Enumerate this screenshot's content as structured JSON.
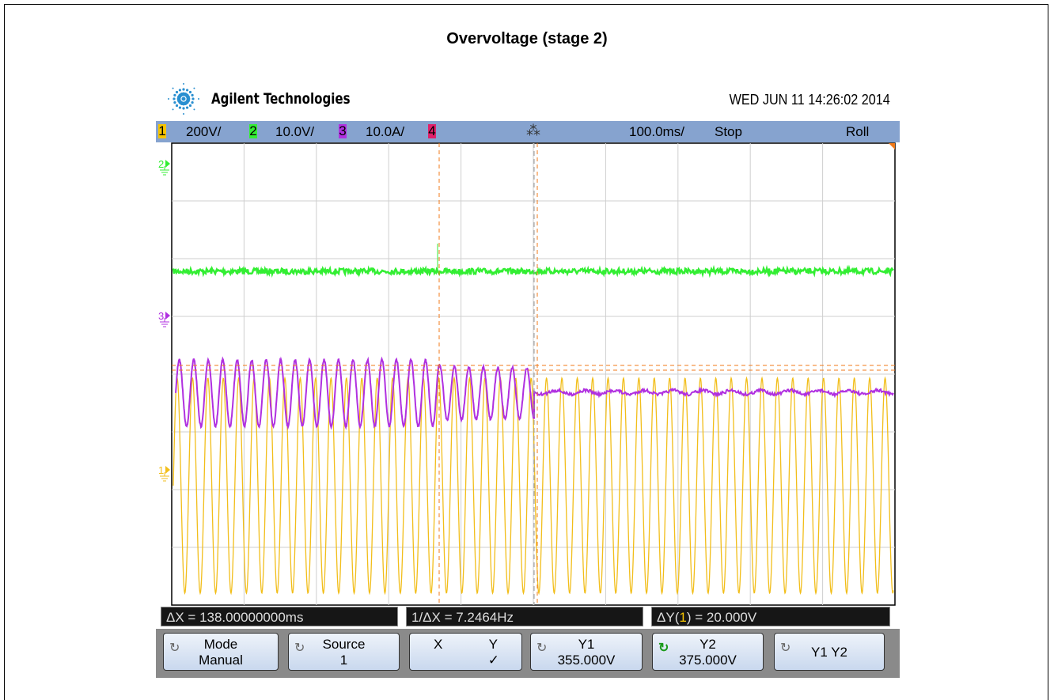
{
  "title": "Overvoltage (stage 2)",
  "scope": {
    "brand": "Agilent Technologies",
    "datetime": "WED JUN 11 14:26:02 2014",
    "status_bar": {
      "channels": [
        {
          "number": "1",
          "scale": "200V/"
        },
        {
          "number": "2",
          "scale": "10.0V/"
        },
        {
          "number": "3",
          "scale": "10.0A/"
        },
        {
          "number": "4"
        }
      ],
      "timebase": "100.0ms/",
      "run_state": "Stop",
      "mode": "Roll"
    },
    "channel_markers": [
      "2",
      "3",
      "1"
    ],
    "measurements": {
      "delta_x": "ΔX = 138.00000000ms",
      "inverse_delta_x": "1/ΔX = 7.2464Hz",
      "delta_y_prefix": "ΔY(",
      "delta_y_channel": "1",
      "delta_y_suffix": ") = 20.000V"
    },
    "softkeys": [
      {
        "label": "Mode",
        "value": "Manual"
      },
      {
        "label": "Source",
        "value": "1"
      },
      {
        "label": "X",
        "value": "Y",
        "check": "✓"
      },
      {
        "label": "Y1",
        "value": "355.000V"
      },
      {
        "label": "Y2",
        "value": "375.000V"
      },
      {
        "label": "Y1 Y2"
      }
    ]
  }
}
